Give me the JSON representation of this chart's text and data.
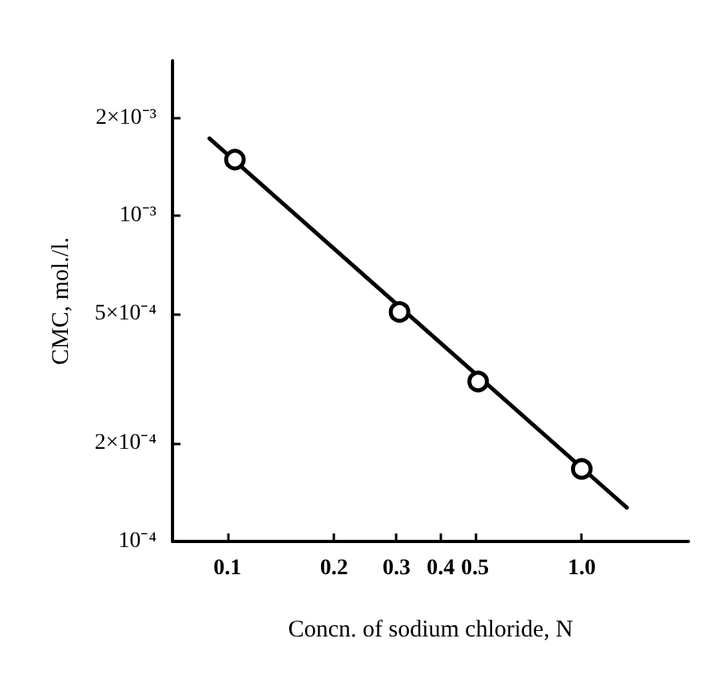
{
  "chart_data": {
    "type": "scatter",
    "xlabel": "Concn. of sodium chloride, N",
    "ylabel": "CMC, mol./l.",
    "log": "xy",
    "grid": false,
    "xlim": [
      0.07,
      2
    ],
    "xticks": [
      0.1,
      0.2,
      0.3,
      0.4,
      0.5,
      {
        "value": 1,
        "label": "1.0"
      }
    ],
    "ylim": [
      0.0001,
      0.003
    ],
    "yticks": [
      {
        "value": 0.0001,
        "label": "10⁻⁴"
      },
      {
        "value": 0.0002,
        "label": "2×10⁻⁴"
      },
      {
        "value": 0.0005,
        "label": "5×10⁻⁴"
      },
      {
        "value": 0.001,
        "label": "10⁻³"
      },
      {
        "value": 0.002,
        "label": "2×10⁻³"
      }
    ],
    "series": [
      {
        "type": "line",
        "color": "#000000",
        "marker": "none",
        "line_style": "solid",
        "x": [
          0.089,
          1.34
        ],
        "values": [
          0.00173,
          0.000127
        ]
      },
      {
        "color": "#000000",
        "marker": "circle",
        "x": [
          0.105,
          0.306,
          0.51,
          1.0
        ],
        "values": [
          0.00149,
          0.000507,
          0.00031,
          0.000167
        ]
      }
    ]
  }
}
